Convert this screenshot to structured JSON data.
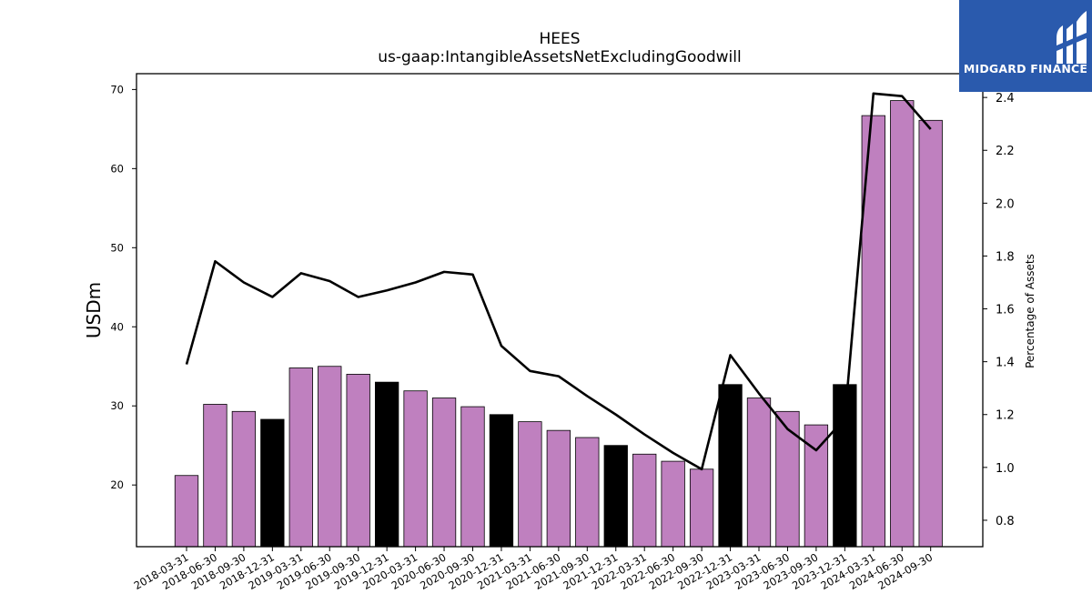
{
  "logo": {
    "text": "MIDGARD FINANCE",
    "icon": "midgard-mark-icon",
    "bg": "#2a5aad"
  },
  "chart_data": {
    "type": "bar",
    "title": "HEES",
    "subtitle": "us-gaap:IntangibleAssetsNetExcludingGoodwill",
    "ylabel": "USDm",
    "y2label": "Percentage of Assets",
    "ylim": [
      12.2,
      72
    ],
    "y2lim": [
      0.7,
      2.49
    ],
    "yticks": [
      20,
      30,
      40,
      50,
      60,
      70
    ],
    "y2ticks": [
      0.8,
      1.0,
      1.2,
      1.4,
      1.6,
      1.8,
      2.0,
      2.2,
      2.4
    ],
    "grid": false,
    "categories": [
      "2018-03-31",
      "2018-06-30",
      "2018-09-30",
      "2018-12-31",
      "2019-03-31",
      "2019-06-30",
      "2019-09-30",
      "2019-12-31",
      "2020-03-31",
      "2020-06-30",
      "2020-09-30",
      "2020-12-31",
      "2021-03-31",
      "2021-06-30",
      "2021-09-30",
      "2021-12-31",
      "2022-03-31",
      "2022-06-30",
      "2022-09-30",
      "2022-12-31",
      "2023-03-31",
      "2023-06-30",
      "2023-09-30",
      "2023-12-31",
      "2024-03-31",
      "2024-06-30",
      "2024-09-30"
    ],
    "series": [
      {
        "type": "bar",
        "axis": "left",
        "values": [
          21.2,
          30.2,
          29.3,
          28.3,
          34.8,
          35.0,
          34.0,
          33.0,
          31.9,
          31.0,
          29.9,
          28.9,
          28.0,
          26.9,
          26.0,
          25.0,
          23.9,
          23.0,
          22.0,
          32.7,
          31.0,
          29.3,
          27.6,
          32.7,
          66.7,
          68.6,
          66.1
        ]
      },
      {
        "type": "line",
        "axis": "right",
        "values": [
          1.39,
          1.78,
          1.7,
          1.645,
          1.735,
          1.705,
          1.645,
          1.67,
          1.7,
          1.74,
          1.73,
          1.46,
          1.365,
          1.345,
          1.27,
          1.2,
          1.125,
          1.055,
          0.993,
          1.425,
          1.28,
          1.145,
          1.065,
          1.185,
          2.415,
          2.405,
          2.28
        ]
      }
    ],
    "colors": {
      "bar": "#bf80bf",
      "bar_highlight": "#000000",
      "line": "#000000"
    },
    "highlight_categories": [
      "2018-12-31",
      "2019-12-31",
      "2020-12-31",
      "2021-12-31",
      "2022-12-31",
      "2023-12-31"
    ]
  }
}
